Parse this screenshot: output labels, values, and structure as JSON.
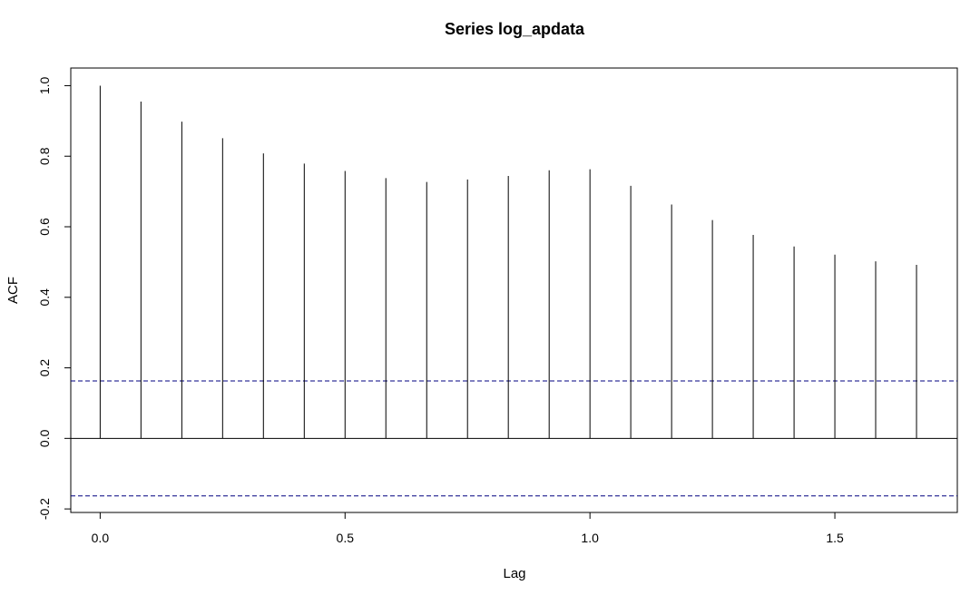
{
  "chart_data": {
    "type": "bar",
    "title": "Series  log_apdata",
    "xlabel": "Lag",
    "ylabel": "ACF",
    "xlim": [
      -0.06,
      1.75
    ],
    "ylim": [
      -0.21,
      1.05
    ],
    "x_ticks": [
      0.0,
      0.5,
      1.0,
      1.5
    ],
    "x_tick_labels": [
      "0.0",
      "0.5",
      "1.0",
      "1.5"
    ],
    "y_ticks": [
      -0.2,
      0.0,
      0.2,
      0.4,
      0.6,
      0.8,
      1.0
    ],
    "y_tick_labels": [
      "-0.2",
      "0.0",
      "0.2",
      "0.4",
      "0.6",
      "0.8",
      "1.0"
    ],
    "lags": [
      0.0,
      0.0833,
      0.1667,
      0.25,
      0.3333,
      0.4167,
      0.5,
      0.5833,
      0.6667,
      0.75,
      0.8333,
      0.9167,
      1.0,
      1.0833,
      1.1667,
      1.25,
      1.3333,
      1.4167,
      1.5,
      1.5833,
      1.6667
    ],
    "values": [
      1.0,
      0.955,
      0.898,
      0.851,
      0.808,
      0.779,
      0.758,
      0.738,
      0.727,
      0.734,
      0.744,
      0.76,
      0.763,
      0.716,
      0.663,
      0.619,
      0.577,
      0.544,
      0.521,
      0.502,
      0.492
    ],
    "confidence_bound": 0.163,
    "zero_line": 0.0,
    "grid": false,
    "bar_color": "#000000",
    "bound_line_color": "#000080",
    "bound_line_style": "dashed"
  }
}
